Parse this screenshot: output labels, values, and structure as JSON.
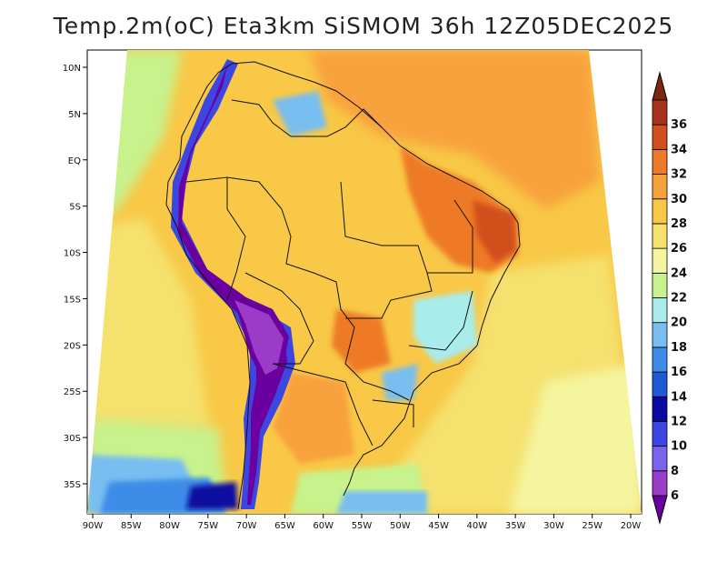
{
  "title": "Temp.2m(oC) Eta3km SiSMOM 36h 12Z05DEC2025",
  "axes": {
    "lon_labels": [
      "90W",
      "85W",
      "80W",
      "75W",
      "70W",
      "65W",
      "60W",
      "55W",
      "50W",
      "45W",
      "40W",
      "35W",
      "30W",
      "25W",
      "20W"
    ],
    "lat_labels": [
      "10N",
      "5N",
      "EQ",
      "5S",
      "10S",
      "15S",
      "20S",
      "25S",
      "30S",
      "35S"
    ]
  },
  "colorbar": {
    "labels": [
      "6",
      "8",
      "10",
      "12",
      "14",
      "16",
      "18",
      "20",
      "22",
      "24",
      "26",
      "28",
      "30",
      "32",
      "34",
      "36"
    ],
    "colors": [
      "#6a00a0",
      "#9a3cc8",
      "#7a64ee",
      "#3c46e0",
      "#0a0aa0",
      "#1e5ad2",
      "#3c8ce8",
      "#78bef0",
      "#a8ecec",
      "#c8f28c",
      "#f5f5a0",
      "#f5e16e",
      "#f8c846",
      "#f8a23c",
      "#ee7a28",
      "#d2501e",
      "#a5321a",
      "#7a2814"
    ]
  },
  "map": {
    "colors": {
      "ocean_warm": "#f8a23c",
      "ocean_mid": "#f8c846",
      "ocean_mild": "#f5e16e",
      "ocean_cool": "#f5f5a0",
      "ocean_cold": "#c8f28c",
      "ocean_colder": "#78bef0",
      "ocean_coldest": "#3c8ce8",
      "land_hot": "#ee7a28",
      "andes_dark": "#6a00a0",
      "andes_mid": "#9a3cc8",
      "andes_edge": "#3c46e0",
      "highland": "#78bef0",
      "border": "#111111"
    }
  }
}
